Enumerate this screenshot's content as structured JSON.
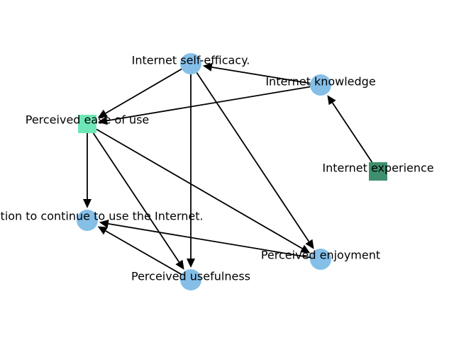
{
  "diagram": {
    "nodes": [
      {
        "id": "self_efficacy",
        "label": "Internet self-efficacy.",
        "shape": "circle",
        "color": "#85bfe8"
      },
      {
        "id": "knowledge",
        "label": "Internet knowledge",
        "shape": "circle",
        "color": "#85bfe8"
      },
      {
        "id": "ease_of_use",
        "label": "Perceived ease of use",
        "shape": "square",
        "color": "#6fe6b6"
      },
      {
        "id": "experience",
        "label": "Internet experience",
        "shape": "square",
        "color": "#3f8f6e"
      },
      {
        "id": "intention",
        "label": "Intention to continue to use the Internet.",
        "shape": "circle",
        "color": "#85bfe8"
      },
      {
        "id": "enjoyment",
        "label": "Perceived enjoyment",
        "shape": "circle",
        "color": "#85bfe8"
      },
      {
        "id": "usefulness",
        "label": "Perceived usefulness",
        "shape": "circle",
        "color": "#85bfe8"
      }
    ],
    "edges": [
      {
        "from": "knowledge",
        "to": "self_efficacy"
      },
      {
        "from": "knowledge",
        "to": "ease_of_use"
      },
      {
        "from": "experience",
        "to": "knowledge"
      },
      {
        "from": "self_efficacy",
        "to": "ease_of_use"
      },
      {
        "from": "self_efficacy",
        "to": "usefulness"
      },
      {
        "from": "self_efficacy",
        "to": "enjoyment"
      },
      {
        "from": "ease_of_use",
        "to": "intention"
      },
      {
        "from": "ease_of_use",
        "to": "usefulness"
      },
      {
        "from": "ease_of_use",
        "to": "enjoyment"
      },
      {
        "from": "enjoyment",
        "to": "intention"
      },
      {
        "from": "usefulness",
        "to": "intention"
      }
    ]
  }
}
